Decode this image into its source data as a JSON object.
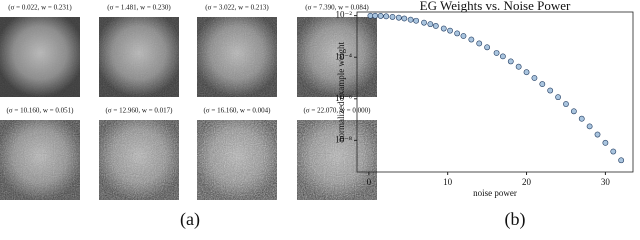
{
  "faces": [
    {
      "caption": "(σ = 0.022, w = 0.231)"
    },
    {
      "caption": "(σ = 1.481, w = 0.230)"
    },
    {
      "caption": "(σ = 3.022, w = 0.213)"
    },
    {
      "caption": "(σ = 7.390, w = 0.084)"
    },
    {
      "caption": "(σ = 10.160, w = 0.051)"
    },
    {
      "caption": "(σ = 12.960, w = 0.017)"
    },
    {
      "caption": "(σ = 16.160, w = 0.004)"
    },
    {
      "caption": "(σ = 22.070, w = 0.000)"
    }
  ],
  "panels": [
    "(a)",
    "(b)"
  ],
  "chart_data": {
    "type": "scatter",
    "title": "EG Weights vs. Noise Power",
    "x_label": "noise power",
    "y_label": "normalized example weight",
    "log_y": true,
    "xlim": [
      -1.5,
      33.5
    ],
    "xticks": [
      0,
      10,
      20,
      30
    ],
    "ylim": [
      3e-10,
      0.015
    ],
    "yticks": [
      {
        "value": 0.01,
        "label": "10⁻²"
      },
      {
        "value": 0.0001,
        "label": "10⁻⁴"
      },
      {
        "value": 1e-06,
        "label": "10⁻⁶"
      },
      {
        "value": 1e-08,
        "label": "10⁻⁸"
      }
    ],
    "series": [
      {
        "color": "#a9c4de",
        "x": [
          0.2,
          0.8,
          1.5,
          2.2,
          3.0,
          3.8,
          4.5,
          5.3,
          6.0,
          7.0,
          7.8,
          8.5,
          9.5,
          10.3,
          11.2,
          12.0,
          13.0,
          14.0,
          15.0,
          16.2,
          17.0,
          18.0,
          19.0,
          20.0,
          21.0,
          22.0,
          23.0,
          24.0,
          25.0,
          26.0,
          27.0,
          28.0,
          29.0,
          30.0,
          31.0,
          32.0
        ],
        "values": [
          0.0099,
          0.0099,
          0.0097,
          0.0093,
          0.0087,
          0.008,
          0.0073,
          0.0064,
          0.0057,
          0.0046,
          0.0039,
          0.0032,
          0.0024,
          0.0019,
          0.0014,
          0.00105,
          0.00071,
          0.00046,
          0.0003,
          0.00016,
          0.00011,
          6.3e-05,
          3.5e-05,
          1.9e-05,
          1e-05,
          5.1e-06,
          2.5e-06,
          1.2e-06,
          5.6e-07,
          2.5e-07,
          1.1e-07,
          4.7e-08,
          1.9e-08,
          7.6e-09,
          2.9e-09,
          1.1e-09
        ]
      }
    ]
  }
}
